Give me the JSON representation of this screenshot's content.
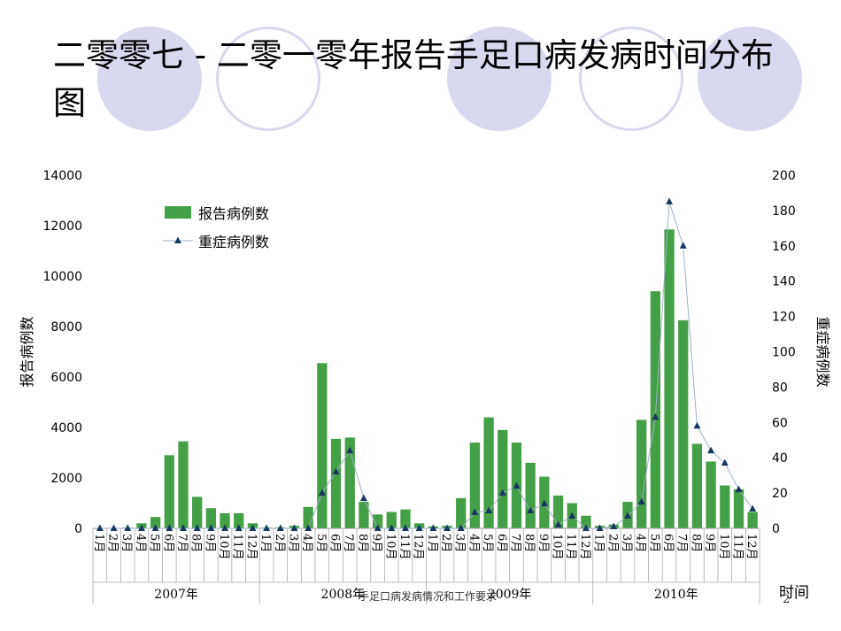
{
  "slide": {
    "title": "二零零七 - 二零一零年报告手足口病发病时间分布图",
    "footer_text": "手足口病发病情况和工作要求",
    "page_number": "2"
  },
  "chart_data": {
    "type": "bar",
    "title": "",
    "ylabel": "报告病例数",
    "y2label": "重症病例数",
    "xlabel": "时间",
    "ylim": [
      0,
      14000
    ],
    "y2lim": [
      0,
      200
    ],
    "yticks": [
      0,
      2000,
      4000,
      6000,
      8000,
      10000,
      12000,
      14000
    ],
    "y2ticks": [
      0,
      20,
      40,
      60,
      80,
      100,
      120,
      140,
      160,
      180,
      200
    ],
    "years": [
      "2007年",
      "2008年",
      "2009年",
      "2010年"
    ],
    "months": [
      "1月",
      "2月",
      "3月",
      "4月",
      "5月",
      "6月",
      "7月",
      "8月",
      "9月",
      "10月",
      "11月",
      "12月"
    ],
    "legend_position": "top-left",
    "colors": {
      "bar": "#43a047",
      "line": "#9fb0c8",
      "marker": "#17375e"
    },
    "series": [
      {
        "name": "报告病例数",
        "kind": "bar",
        "axis": "left",
        "values": [
          0,
          10,
          30,
          200,
          450,
          2900,
          3450,
          1250,
          800,
          600,
          600,
          200,
          30,
          40,
          100,
          850,
          6550,
          3550,
          3600,
          1050,
          550,
          650,
          750,
          200,
          80,
          100,
          1200,
          3400,
          4400,
          3900,
          3400,
          2600,
          2050,
          1300,
          1000,
          500,
          100,
          150,
          1050,
          4300,
          9400,
          11850,
          8250,
          3350,
          2650,
          1700,
          1550,
          650
        ]
      },
      {
        "name": "重症病例数",
        "kind": "line",
        "axis": "right",
        "values": [
          0,
          0,
          0,
          0,
          0,
          0,
          0,
          0,
          0,
          0,
          0,
          0,
          0,
          0,
          0,
          0,
          20,
          32,
          44,
          17,
          0,
          0,
          0,
          0,
          0,
          0,
          0,
          9,
          10,
          20,
          24,
          10,
          14,
          2,
          7,
          0,
          0,
          1,
          7,
          15,
          63,
          185,
          160,
          58,
          44,
          37,
          22,
          11
        ]
      }
    ]
  }
}
